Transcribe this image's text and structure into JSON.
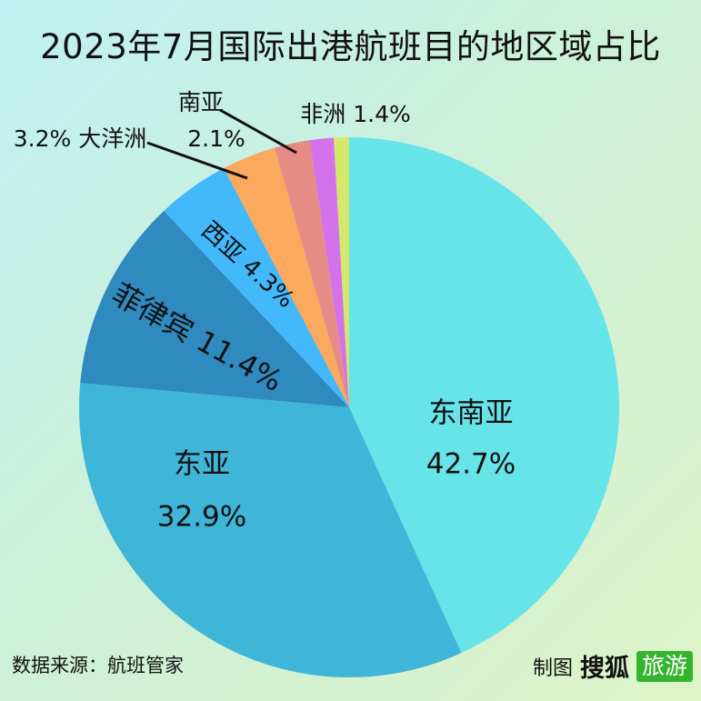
{
  "title": "2023年7月国际出港航班目的地区域占比",
  "source": "数据来源：航班管家",
  "credit": {
    "prefix": "制图",
    "brand_main": "搜狐",
    "brand_box": "旅游",
    "brand_color": "#35b42f"
  },
  "chart_data": {
    "type": "pie",
    "title": "2023年7月国际出港航班目的地区域占比",
    "start": "12 o'clock",
    "direction": "clockwise",
    "unit": "%",
    "slices": [
      {
        "label": "东南亚",
        "value": 42.7,
        "value_label": "42.7%",
        "color": "#67e3ea"
      },
      {
        "label": "东亚",
        "value": 32.9,
        "value_label": "32.9%",
        "color": "#3fb6d8"
      },
      {
        "label": "菲律宾",
        "value": 11.4,
        "value_label": "11.4%",
        "color": "#2f8abf"
      },
      {
        "label": "西亚",
        "value": 4.3,
        "value_label": "4.3%",
        "color": "#43b8fb"
      },
      {
        "label": "大洋洲",
        "value": 3.2,
        "value_label": "3.2%",
        "color": "#fba95c"
      },
      {
        "label": "南亚",
        "value": 2.1,
        "value_label": "2.1%",
        "color": "#e58c87"
      },
      {
        "label": "非洲",
        "value": 1.4,
        "value_label": "1.4%",
        "color": "#d372ea"
      },
      {
        "label": "",
        "value": 0.9,
        "value_label": "",
        "color": "#d5e86b"
      }
    ]
  }
}
